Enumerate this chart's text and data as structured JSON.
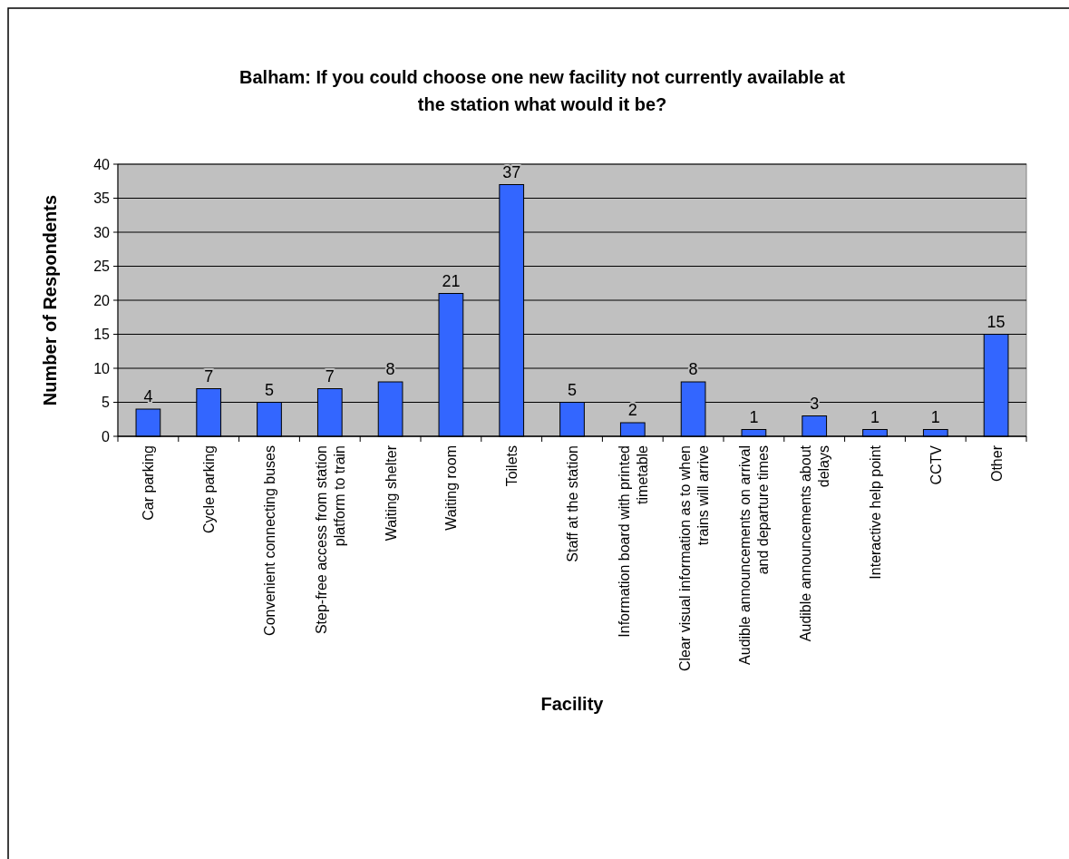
{
  "chart_data": {
    "type": "bar",
    "title": "Balham: If you could choose one new facility not currently available at\nthe station what would it be?",
    "xlabel": "Facility",
    "ylabel": "Number of Respondents",
    "categories": [
      "Car parking",
      "Cycle parking",
      "Convenient connecting buses",
      "Step-free access from station\nplatform to train",
      "Waiting shelter",
      "Waiting room",
      "Toilets",
      "Staff at the station",
      "Information board with printed\ntimetable",
      "Clear visual information as to when\ntrains will arrive",
      "Audible announcements on arrival\nand departure times",
      "Audible announcements about\ndelays",
      "Interactive help point",
      "CCTV",
      "Other"
    ],
    "values": [
      4,
      7,
      5,
      7,
      8,
      21,
      37,
      5,
      2,
      8,
      1,
      3,
      1,
      1,
      15
    ],
    "color": "#3366ff",
    "ylim": [
      0,
      40
    ],
    "yticks": [
      0,
      5,
      10,
      15,
      20,
      25,
      30,
      35,
      40
    ],
    "grid": "y",
    "data_labels": true
  }
}
